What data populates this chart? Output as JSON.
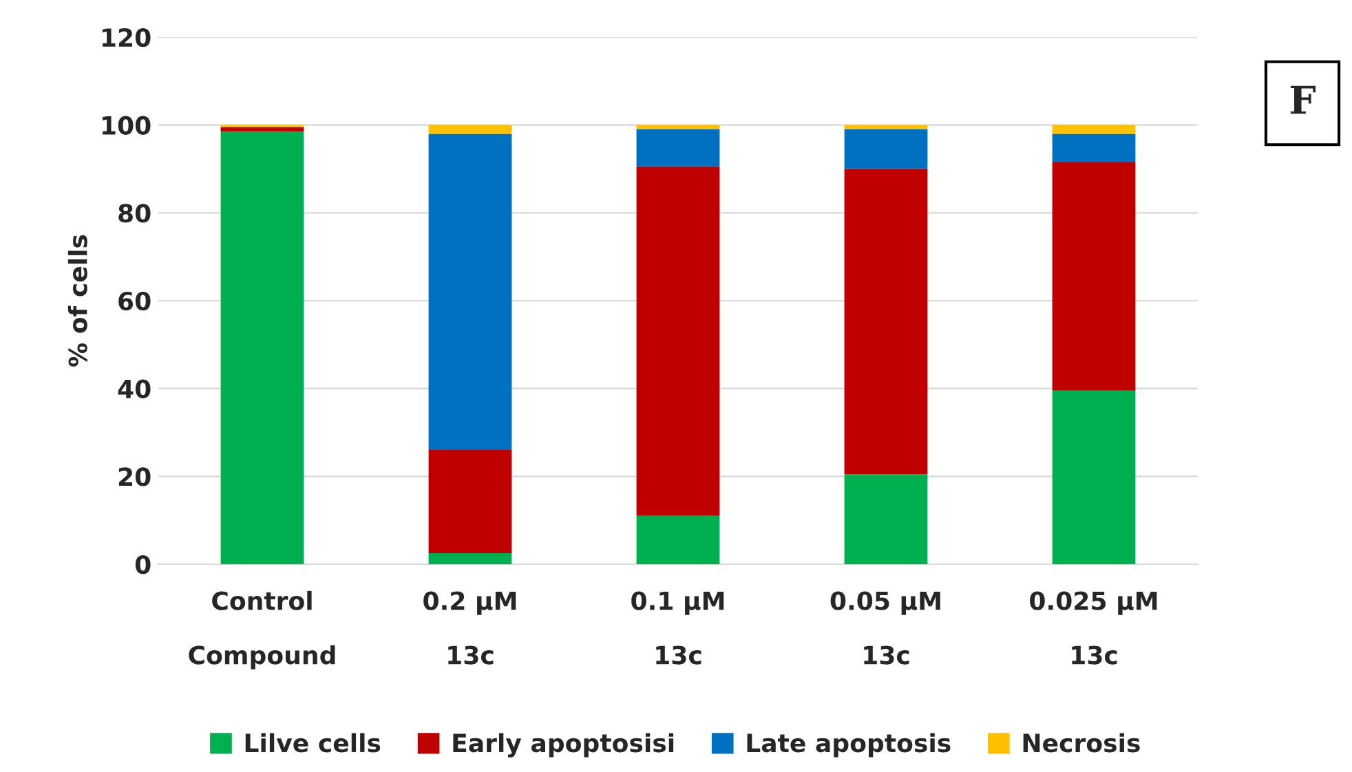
{
  "chart_data": {
    "type": "bar",
    "stacked": true,
    "ylabel": "% of cells",
    "categories": [
      "Control\nCompound",
      "0.2 µM\n13c",
      "0.1 µM\n13c",
      "0.05 µM\n13c",
      "0.025 µM\n13c"
    ],
    "series": [
      {
        "name": "Lilve cells",
        "color": "#00b050",
        "values": [
          98.5,
          2.5,
          11,
          20.5,
          39.5
        ]
      },
      {
        "name": "Early apoptosisi",
        "color": "#c00000",
        "values": [
          1,
          23.5,
          79.5,
          69.5,
          52
        ]
      },
      {
        "name": "Late apoptosis",
        "color": "#0070c0",
        "values": [
          0,
          72,
          8.5,
          9,
          6.5
        ]
      },
      {
        "name": "Necrosis",
        "color": "#ffc000",
        "values": [
          0.5,
          2,
          1,
          1,
          2
        ]
      }
    ],
    "ylim": [
      0,
      120
    ],
    "yticks": [
      0,
      20,
      40,
      60,
      80,
      100,
      120
    ],
    "grid": "y",
    "legend": "bottom",
    "annotations": [
      "F"
    ]
  }
}
